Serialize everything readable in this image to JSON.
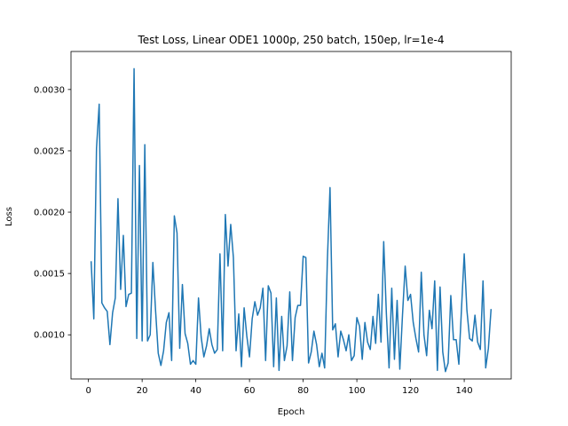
{
  "chart_data": {
    "type": "line",
    "title": "Test Loss, Linear ODE1 1000p, 250 batch, 150ep, lr=1e-4",
    "xlabel": "Epoch",
    "ylabel": "Loss",
    "xlim": [
      -6.5,
      157.5
    ],
    "ylim": [
      0.00064,
      0.00331
    ],
    "xticks": [
      0,
      20,
      40,
      60,
      80,
      100,
      120,
      140
    ],
    "xtick_labels": [
      "0",
      "20",
      "40",
      "60",
      "80",
      "100",
      "120",
      "140"
    ],
    "yticks": [
      0.001,
      0.0015,
      0.002,
      0.0025,
      0.003
    ],
    "ytick_labels": [
      "0.0010",
      "0.0015",
      "0.0020",
      "0.0025",
      "0.0030"
    ],
    "grid": false,
    "legend": "none",
    "series": [
      {
        "color": "#1f77b4",
        "x": [
          1,
          2,
          3,
          4,
          5,
          6,
          7,
          8,
          9,
          10,
          11,
          12,
          13,
          14,
          15,
          16,
          17,
          18,
          19,
          20,
          21,
          22,
          23,
          24,
          25,
          26,
          27,
          28,
          29,
          30,
          31,
          32,
          33,
          34,
          35,
          36,
          37,
          38,
          39,
          40,
          41,
          42,
          43,
          44,
          45,
          46,
          47,
          48,
          49,
          50,
          51,
          52,
          53,
          54,
          55,
          56,
          57,
          58,
          59,
          60,
          61,
          62,
          63,
          64,
          65,
          66,
          67,
          68,
          69,
          70,
          71,
          72,
          73,
          74,
          75,
          76,
          77,
          78,
          79,
          80,
          81,
          82,
          83,
          84,
          85,
          86,
          87,
          88,
          89,
          90,
          91,
          92,
          93,
          94,
          95,
          96,
          97,
          98,
          99,
          100,
          101,
          102,
          103,
          104,
          105,
          106,
          107,
          108,
          109,
          110,
          111,
          112,
          113,
          114,
          115,
          116,
          117,
          118,
          119,
          120,
          121,
          122,
          123,
          124,
          125,
          126,
          127,
          128,
          129,
          130,
          131,
          132,
          133,
          134,
          135,
          136,
          137,
          138,
          139,
          140,
          141,
          142,
          143,
          144,
          145,
          146,
          147,
          148,
          149,
          150
        ],
        "y": [
          0.0016,
          0.00113,
          0.00252,
          0.00288,
          0.00126,
          0.00122,
          0.00119,
          0.00092,
          0.00118,
          0.0013,
          0.00211,
          0.00137,
          0.00181,
          0.00123,
          0.00133,
          0.00134,
          0.00317,
          0.00097,
          0.00238,
          0.00095,
          0.00255,
          0.00095,
          0.001,
          0.00159,
          0.0012,
          0.00085,
          0.00075,
          0.00087,
          0.0011,
          0.00118,
          0.00079,
          0.00197,
          0.00183,
          0.00089,
          0.00141,
          0.00101,
          0.00093,
          0.00076,
          0.00079,
          0.00076,
          0.0013,
          0.00098,
          0.00082,
          0.00091,
          0.00105,
          0.00092,
          0.00085,
          0.00088,
          0.00166,
          0.00087,
          0.00198,
          0.00156,
          0.0019,
          0.00163,
          0.00087,
          0.00117,
          0.00074,
          0.00122,
          0.00099,
          0.00082,
          0.00113,
          0.00127,
          0.00116,
          0.00122,
          0.00138,
          0.00079,
          0.0014,
          0.00134,
          0.00074,
          0.0013,
          0.00071,
          0.00115,
          0.00079,
          0.00091,
          0.00135,
          0.00079,
          0.00114,
          0.00124,
          0.00124,
          0.00164,
          0.00163,
          0.00077,
          0.00086,
          0.00103,
          0.00092,
          0.00074,
          0.00085,
          0.00073,
          0.0016,
          0.0022,
          0.00104,
          0.00109,
          0.00082,
          0.00103,
          0.00096,
          0.00087,
          0.001,
          0.00079,
          0.00083,
          0.00114,
          0.00107,
          0.0008,
          0.0011,
          0.00094,
          0.00088,
          0.00115,
          0.00093,
          0.00133,
          0.00094,
          0.00176,
          0.00117,
          0.00073,
          0.00138,
          0.0008,
          0.00128,
          0.00072,
          0.00116,
          0.00156,
          0.00128,
          0.00133,
          0.0011,
          0.00097,
          0.00086,
          0.00151,
          0.001,
          0.00083,
          0.0012,
          0.00105,
          0.00144,
          0.00071,
          0.00139,
          0.00086,
          0.0007,
          0.00077,
          0.00132,
          0.00096,
          0.00096,
          0.00076,
          0.00122,
          0.00166,
          0.0012,
          0.00097,
          0.00095,
          0.00116,
          0.00094,
          0.00088,
          0.00144,
          0.00073,
          0.00089,
          0.00121
        ]
      }
    ]
  }
}
